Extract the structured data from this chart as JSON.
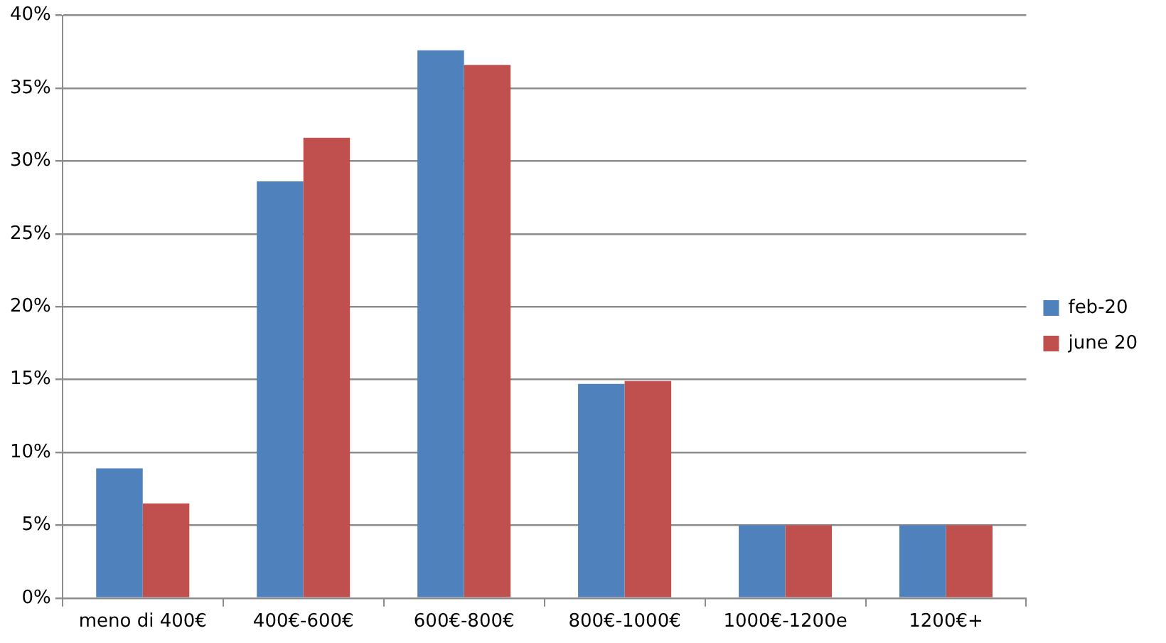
{
  "chart_data": {
    "type": "bar",
    "categories": [
      "meno di 400€",
      "400€-600€",
      "600€-800€",
      "800€-1000€",
      "1000€-1200e",
      "1200€+"
    ],
    "series": [
      {
        "name": "feb-20",
        "color": "#4f81bd",
        "values": [
          8.9,
          28.6,
          37.6,
          14.7,
          5,
          5
        ]
      },
      {
        "name": "june 20",
        "color": "#c0504d",
        "values": [
          6.5,
          31.6,
          36.6,
          14.9,
          5,
          5
        ]
      }
    ],
    "ylim": [
      0,
      40
    ],
    "yticks": [
      {
        "value": 0,
        "label": "0%"
      },
      {
        "value": 5,
        "label": "5%"
      },
      {
        "value": 10,
        "label": "10%"
      },
      {
        "value": 15,
        "label": "15%"
      },
      {
        "value": 20,
        "label": "20%"
      },
      {
        "value": 25,
        "label": "25%"
      },
      {
        "value": 30,
        "label": "30%"
      },
      {
        "value": 35,
        "label": "35%"
      },
      {
        "value": 40,
        "label": "40%"
      }
    ],
    "grid": "y",
    "legend": "right"
  }
}
